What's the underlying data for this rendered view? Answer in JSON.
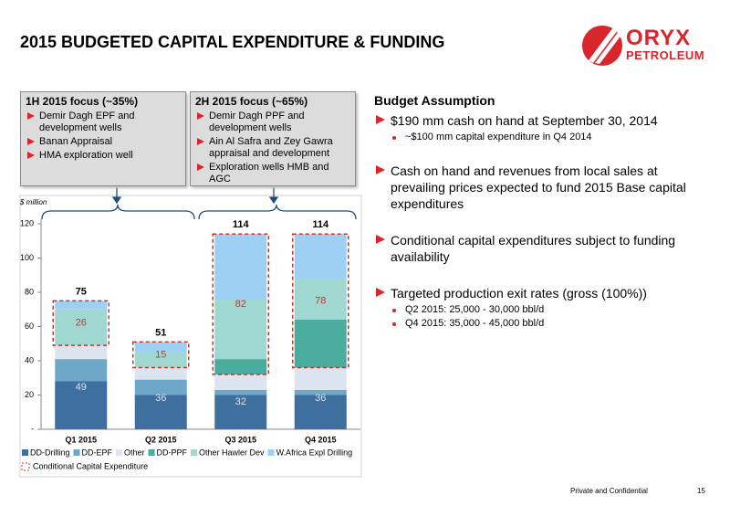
{
  "header": {
    "title": "2015 BUDGETED CAPITAL EXPENDITURE & FUNDING",
    "logo": "ORYX",
    "logo_sub": "PETROLEUM"
  },
  "focus_boxes": [
    {
      "title": "1H 2015 focus (~35%)",
      "bullets": [
        "Demir Dagh EPF and development wells",
        "Banan Appraisal",
        "HMA exploration well"
      ]
    },
    {
      "title": "2H 2015 focus (~65%)",
      "bullets": [
        "Demir Dagh PPF and development wells",
        "Ain Al Safra and Zey Gawra appraisal and development",
        "Exploration wells HMB and AGC"
      ]
    }
  ],
  "chart_data": {
    "type": "stacked_bar",
    "y_label": "$ million",
    "categories": [
      "Q1 2015",
      "Q2 2015",
      "Q3 2015",
      "Q4 2015"
    ],
    "series": [
      {
        "name": "DD-Drilling",
        "color": "#3e6f9f",
        "values": [
          28,
          20,
          20,
          20
        ]
      },
      {
        "name": "DD-EPF",
        "color": "#6fa7c9",
        "values": [
          13,
          9,
          3,
          3
        ]
      },
      {
        "name": "Other",
        "color": "#dce5ef",
        "values": [
          8,
          7,
          9,
          13
        ]
      },
      {
        "name": "DD-PPF",
        "color": "#4aab9f",
        "values": [
          0,
          0,
          9,
          28
        ]
      },
      {
        "name": "Other Hawler Dev",
        "color": "#a1d7d1",
        "values": [
          21,
          9,
          35,
          24
        ]
      },
      {
        "name": "W.Africa Expl Drilling",
        "color": "#9dd0f2",
        "values": [
          5,
          6,
          38,
          26
        ]
      }
    ],
    "base_labels": [
      49,
      36,
      32,
      36
    ],
    "conditional_labels": [
      26,
      15,
      82,
      78
    ],
    "totals": [
      75,
      51,
      114,
      114
    ],
    "conditional_legend": "Conditional Capital Expenditure",
    "ylim": [
      0,
      120
    ],
    "yticks": [
      {
        "value": 0,
        "label": "-"
      },
      20,
      40,
      60,
      80,
      100,
      120
    ]
  },
  "budget": {
    "title": "Budget Assumption",
    "items": [
      {
        "text": "$190 mm cash on hand at September 30, 2014",
        "subitems": [
          "~$100 mm capital expenditure in Q4 2014"
        ]
      },
      {
        "text": "Cash on hand and revenues from local sales at prevailing prices expected to fund 2015 Base capital expenditures",
        "subitems": []
      },
      {
        "text": "Conditional capital expenditures subject to funding availability",
        "subitems": []
      },
      {
        "text": "Targeted production exit rates (gross (100%))",
        "subitems": [
          "Q2 2015: 25,000 - 30,000 bbl/d",
          "Q4 2015: 35,000 - 45,000 bbl/d"
        ]
      }
    ]
  },
  "footer": {
    "note": "Private and Confidential",
    "page": 15
  }
}
